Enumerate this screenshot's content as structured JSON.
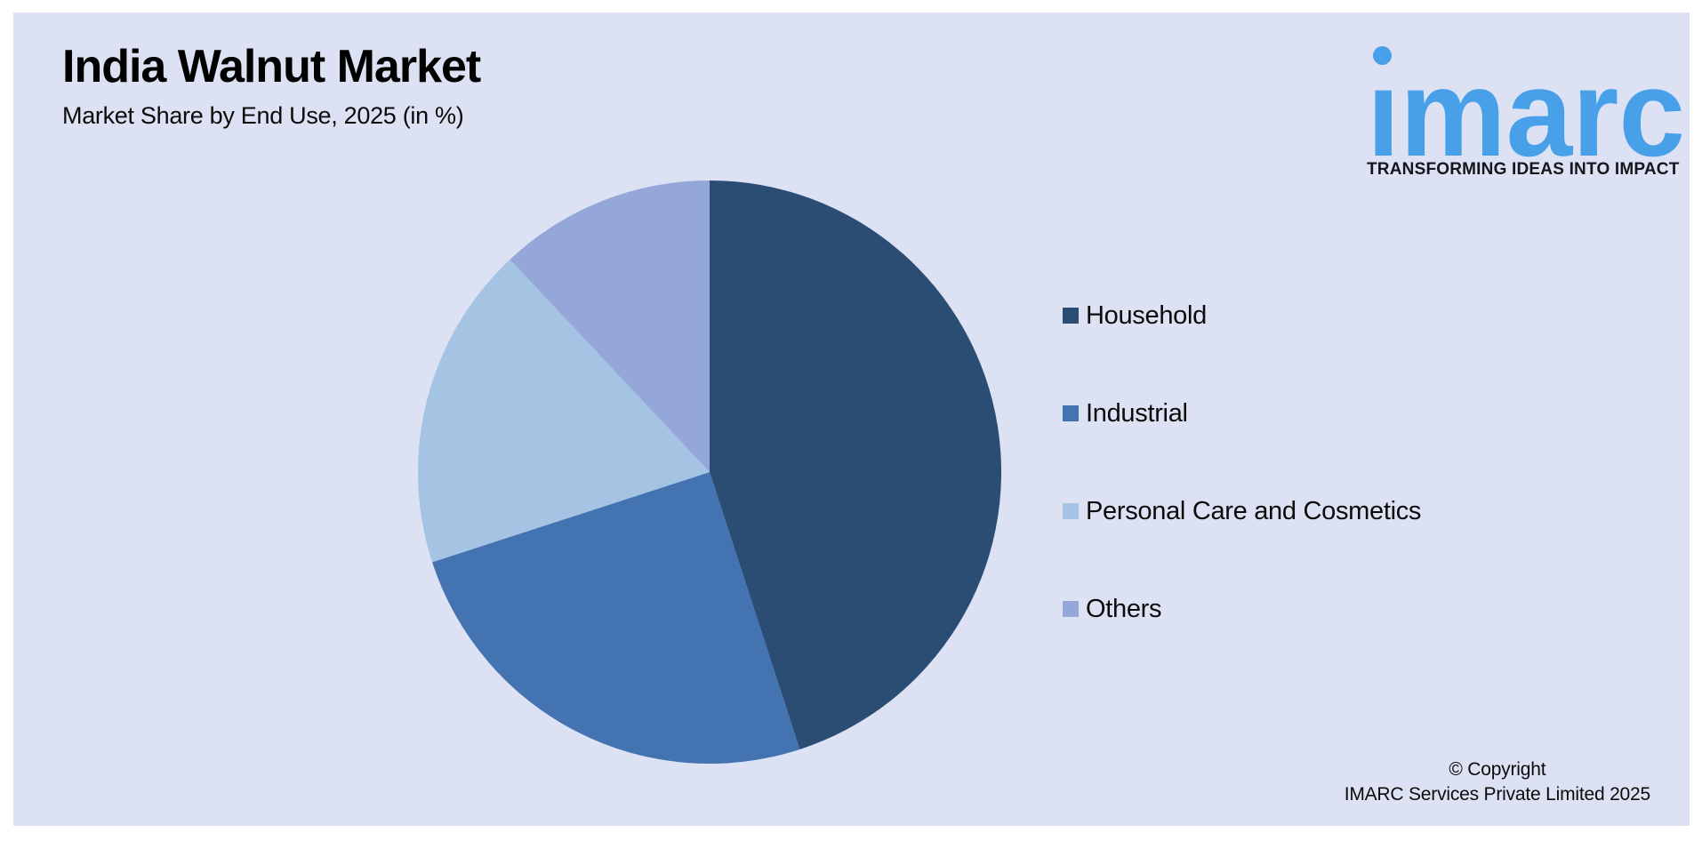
{
  "header": {
    "title": "India Walnut Market",
    "subtitle": "Market Share by End Use, 2025 (in %)"
  },
  "logo": {
    "wordmark": "imarc",
    "wordmark_display": "ımarc",
    "tagline": "TRANSFORMING IDEAS INTO IMPACT",
    "brand_color": "#48a1e8",
    "tagline_color": "#15151c"
  },
  "chart_data": {
    "type": "pie",
    "title": "India Walnut Market",
    "subtitle": "Market Share by End Use, 2025 (in %)",
    "unit": "%",
    "start_angle_deg": 0,
    "direction": "clockwise",
    "legend_position": "right",
    "data_labels_shown": false,
    "slices": [
      {
        "label": "Household",
        "value": 45,
        "color": "#2b4d74"
      },
      {
        "label": "Industrial",
        "value": 25,
        "color": "#4473b2"
      },
      {
        "label": "Personal Care and Cosmetics",
        "value": 18,
        "color": "#a5c3e3"
      },
      {
        "label": "Others",
        "value": 12,
        "color": "#95a6d9"
      }
    ]
  },
  "footer": {
    "copyright_line1": "© Copyright",
    "copyright_line2": "IMARC Services Private Limited 2025"
  },
  "colors": {
    "page_background": "#ffffff",
    "panel_background": "#dce2f3"
  }
}
